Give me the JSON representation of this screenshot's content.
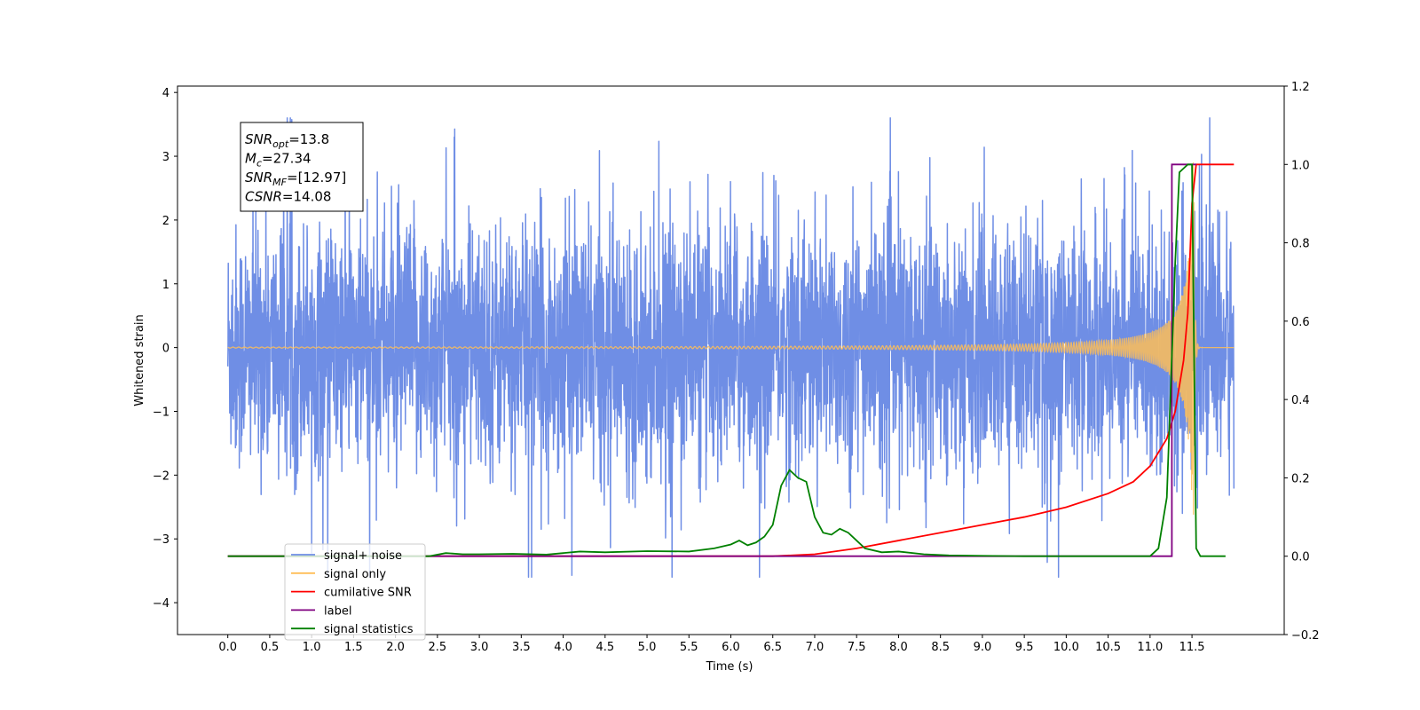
{
  "chart_data": {
    "type": "line",
    "xlabel": "Time (s)",
    "ylabel": "Whitened strain",
    "xlim": [
      -0.6,
      12.6
    ],
    "ylim": [
      -4.5,
      4.1
    ],
    "ylim_right": [
      -0.2,
      1.2
    ],
    "xticks": [
      0.0,
      0.5,
      1.0,
      1.5,
      2.0,
      2.5,
      3.0,
      3.5,
      4.0,
      4.5,
      5.0,
      5.5,
      6.0,
      6.5,
      7.0,
      7.5,
      8.0,
      8.5,
      9.0,
      9.5,
      10.0,
      10.5,
      11.0,
      11.5
    ],
    "xtick_labels": [
      "0.0",
      "0.5",
      "1.0",
      "1.5",
      "2.0",
      "2.5",
      "3.0",
      "3.5",
      "4.0",
      "4.5",
      "5.0",
      "5.5",
      "6.0",
      "6.5",
      "7.0",
      "7.5",
      "8.0",
      "8.5",
      "9.0",
      "9.5",
      "10.0",
      "10.5",
      "11.0",
      "11.5"
    ],
    "yticks_left": [
      -4,
      -3,
      -2,
      -1,
      0,
      1,
      2,
      3,
      4
    ],
    "ytick_labels_left": [
      "−4",
      "−3",
      "−2",
      "−1",
      "0",
      "1",
      "2",
      "3",
      "4"
    ],
    "yticks_right": [
      -0.2,
      0.0,
      0.2,
      0.4,
      0.6,
      0.8,
      1.0,
      1.2
    ],
    "ytick_labels_right": [
      "−0.2",
      "0.0",
      "0.2",
      "0.4",
      "0.6",
      "0.8",
      "1.0",
      "1.2"
    ],
    "grid": false,
    "legend_position": "lower-left",
    "series": [
      {
        "name": "signal+ noise",
        "axis": "left",
        "color": "#6f8ee5",
        "description": "whitened noisy strain, roughly ±1.3 std with spikes to about ±3.5",
        "x_range": [
          0.0,
          12.0
        ]
      },
      {
        "name": "signal only",
        "axis": "left",
        "color": "#ffbe57",
        "description": "chirp signal growing near merger",
        "x_range": [
          0.0,
          12.0
        ],
        "peak_time": 11.52,
        "peak_amplitude": 3.3
      },
      {
        "name": "cumilative SNR",
        "axis": "right",
        "color": "#ff0000",
        "x": [
          0.0,
          6.5,
          7.0,
          7.5,
          8.0,
          8.5,
          9.0,
          9.5,
          10.0,
          10.5,
          10.8,
          11.0,
          11.2,
          11.3,
          11.4,
          11.45,
          11.5,
          11.55,
          12.0
        ],
        "y": [
          0.0,
          0.0,
          0.005,
          0.02,
          0.04,
          0.06,
          0.08,
          0.1,
          0.125,
          0.16,
          0.19,
          0.23,
          0.3,
          0.37,
          0.5,
          0.62,
          0.9,
          1.0,
          1.0
        ]
      },
      {
        "name": "label",
        "axis": "right",
        "color": "#800080",
        "x": [
          0.0,
          11.26,
          11.26,
          11.55
        ],
        "y": [
          0.0,
          0.0,
          1.0,
          1.0
        ]
      },
      {
        "name": "signal statistics",
        "axis": "right",
        "color": "#008000",
        "x": [
          0.0,
          2.4,
          2.6,
          2.8,
          3.0,
          3.4,
          3.8,
          4.2,
          4.5,
          5.0,
          5.5,
          5.8,
          6.0,
          6.1,
          6.2,
          6.3,
          6.4,
          6.5,
          6.6,
          6.7,
          6.8,
          6.9,
          7.0,
          7.1,
          7.2,
          7.3,
          7.4,
          7.5,
          7.6,
          7.8,
          8.0,
          8.3,
          8.6,
          9.0,
          9.5,
          10.0,
          10.5,
          11.0,
          11.1,
          11.2,
          11.3,
          11.35,
          11.45,
          11.5,
          11.55,
          11.6,
          11.9
        ],
        "y": [
          0.0,
          0.0,
          0.008,
          0.005,
          0.005,
          0.006,
          0.004,
          0.012,
          0.01,
          0.013,
          0.012,
          0.02,
          0.03,
          0.04,
          0.028,
          0.035,
          0.05,
          0.08,
          0.18,
          0.22,
          0.2,
          0.19,
          0.1,
          0.06,
          0.055,
          0.07,
          0.06,
          0.04,
          0.02,
          0.01,
          0.012,
          0.005,
          0.002,
          0.001,
          0.0,
          0.0,
          0.0,
          0.0,
          0.02,
          0.15,
          0.75,
          0.98,
          1.0,
          1.0,
          0.02,
          0.0,
          0.0
        ]
      }
    ],
    "annotation": {
      "lines": [
        {
          "var": "SNR",
          "sub": "opt",
          "value": "=13.8"
        },
        {
          "var": "M",
          "sub": "c",
          "value": "=27.34"
        },
        {
          "var": "SNR",
          "sub": "MF",
          "value": "=[12.97]"
        },
        {
          "var": "CSNR",
          "sub": "",
          "value": "=14.08"
        }
      ]
    },
    "legend": [
      {
        "label": "signal+ noise",
        "color": "#6f8ee5"
      },
      {
        "label": "signal only",
        "color": "#ffbe57"
      },
      {
        "label": "cumilative SNR",
        "color": "#ff0000"
      },
      {
        "label": "label",
        "color": "#800080"
      },
      {
        "label": "signal statistics",
        "color": "#008000"
      }
    ]
  }
}
